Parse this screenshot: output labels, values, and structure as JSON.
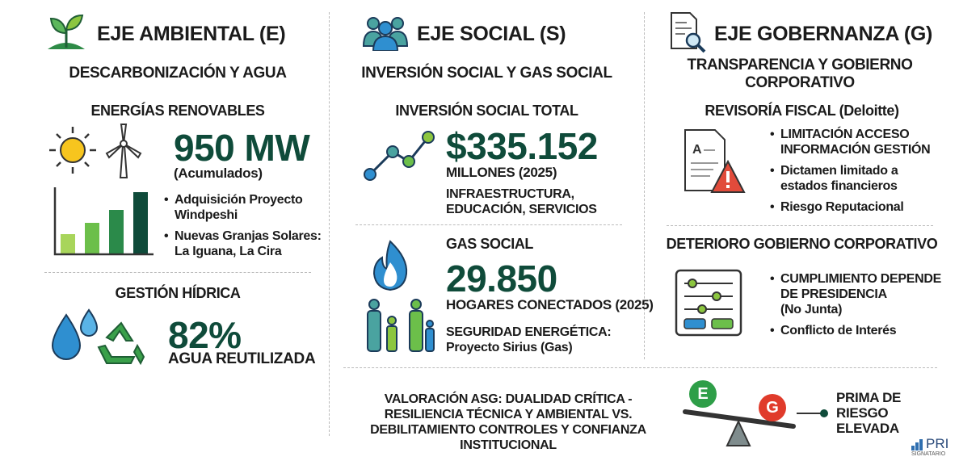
{
  "ambiental": {
    "title": "EJE AMBIENTAL (E)",
    "subtitle": "DESCARBONIZACIÓN Y AGUA",
    "renovables": {
      "heading": "ENERGÍAS RENOVABLES",
      "figure": "950 MW",
      "note": "(Acumulados)",
      "bullets": [
        "Adquisición Proyecto Windpeshi",
        "Nuevas Granjas Solares: La Iguana, La Cira"
      ]
    },
    "hidrica": {
      "heading": "GESTIÓN HÍDRICA",
      "figure": "82%",
      "note": "AGUA REUTILIZADA"
    }
  },
  "social": {
    "title": "EJE SOCIAL (S)",
    "subtitle": "INVERSIÓN SOCIAL Y GAS SOCIAL",
    "inversion": {
      "heading": "INVERSIÓN SOCIAL TOTAL",
      "figure": "$335.152",
      "note": "MILLONES (2025)",
      "detail": "INFRAESTRUCTURA, EDUCACIÓN, SERVICIOS"
    },
    "gas": {
      "heading": "GAS SOCIAL",
      "figure": "29.850",
      "note": "HOGARES CONECTADOS (2025)",
      "detail_title": "SEGURIDAD ENERGÉTICA:",
      "detail": "Proyecto Sirius (Gas)"
    }
  },
  "gobernanza": {
    "title": "EJE GOBERNANZA (G)",
    "subtitle": "TRANSPARENCIA Y GOBIERNO CORPORATIVO",
    "revisoria": {
      "heading": "REVISORÍA FISCAL (Deloitte)",
      "bullets": [
        "LIMITACIÓN ACCESO INFORMACIÓN GESTIÓN",
        "Dictamen limitado a estados financieros",
        "Riesgo Reputacional"
      ]
    },
    "deterioro": {
      "heading": "DETERIORO GOBIERNO CORPORATIVO",
      "bullets": [
        "CUMPLIMIENTO DEPENDE DE PRESIDENCIA",
        "(No Junta)",
        "Conflicto de Interés"
      ]
    }
  },
  "footer": {
    "valuation": "VALORACIÓN ASG: DUALIDAD CRÍTICA - RESILIENCIA TÉCNICA Y AMBIENTAL VS. DEBILITAMIENTO CONTROLES Y CONFIANZA INSTITUCIONAL",
    "badge_e": "E",
    "badge_g": "G",
    "result": "PRIMA DE RIESGO ELEVADA",
    "logo": "PRI",
    "logo_sub": "SIGNATARIO"
  }
}
